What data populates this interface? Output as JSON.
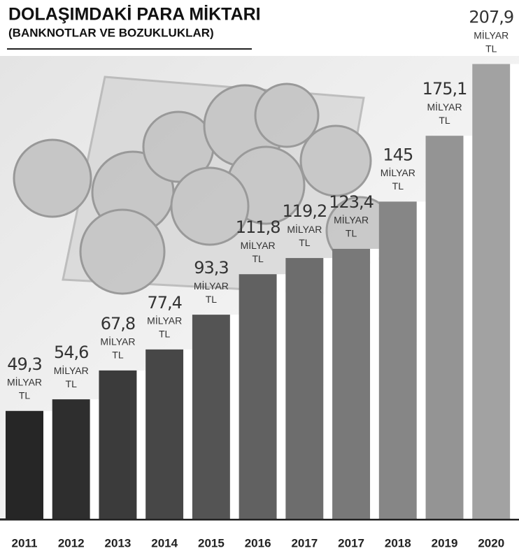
{
  "chart_data": {
    "type": "bar",
    "title": "DOLAŞIMDAKİ PARA MİKTARI",
    "subtitle": "(BANKNOTLAR VE BOZUKLUKLAR)",
    "categories": [
      "2011",
      "2012",
      "2013",
      "2014",
      "2015",
      "2016",
      "2017",
      "2017",
      "2018",
      "2019",
      "2020"
    ],
    "values": [
      49.3,
      54.6,
      67.8,
      77.4,
      93.3,
      111.8,
      119.2,
      123.4,
      145,
      175.1,
      207.9
    ],
    "value_labels": [
      "49,3",
      "54,6",
      "67,8",
      "77,4",
      "93,3",
      "111,8",
      "119,2",
      "123,4",
      "145",
      "175,1",
      "207,9"
    ],
    "unit_lines": [
      "MİLYAR",
      "TL"
    ],
    "colors": [
      "#262626",
      "#2e2e2e",
      "#3b3b3b",
      "#474747",
      "#545454",
      "#616161",
      "#6d6d6d",
      "#797979",
      "#868686",
      "#949494",
      "#a2a2a2"
    ],
    "ylim": [
      0,
      210
    ]
  }
}
